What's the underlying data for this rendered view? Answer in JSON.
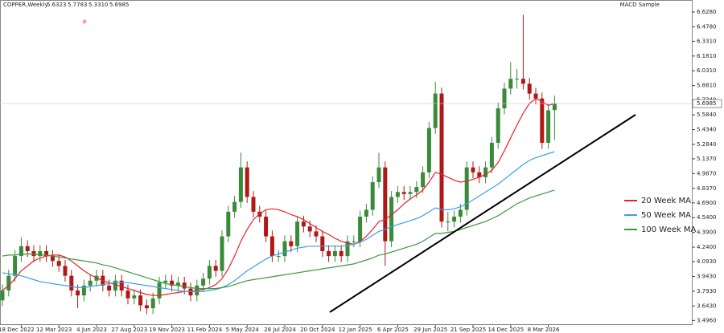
{
  "chart_data": {
    "type": "candlestick",
    "title": "COPPER,Weekly",
    "ohlc_label": [
      "5.6323",
      "5.7783",
      "5.3310",
      "5.6985"
    ],
    "indicator": "MACD Sample",
    "categories": [
      null,
      null,
      null,
      "18 Dec 2022",
      null,
      null,
      null,
      null,
      null,
      "12 Mar 2023",
      null,
      null,
      null,
      null,
      null,
      "4 Jun 2023",
      null,
      null,
      null,
      null,
      null,
      "27 Aug 2023",
      null,
      null,
      null,
      null,
      null,
      "19 Nov 2023",
      null,
      null,
      null,
      null,
      null,
      "11 Feb 2024",
      null,
      null,
      null,
      null,
      null,
      "5 May 2024",
      null,
      null,
      null,
      null,
      null,
      "28 Jul 2024",
      null,
      null,
      null,
      null,
      null,
      "20 Oct 2024",
      null,
      null,
      null,
      null,
      null,
      "12 Jan 2025",
      null,
      null,
      null,
      null,
      null,
      "6 Apr 2025",
      null,
      null,
      null,
      null,
      null,
      "29 Jun 2025",
      null,
      null,
      null,
      null,
      null,
      "21 Sep 2025",
      null,
      null,
      null,
      null,
      null,
      "14 Dec 2025",
      null,
      null,
      null,
      null,
      null,
      "8 Mar 2026",
      null
    ],
    "open": [
      3.7,
      3.8,
      3.95,
      4.15,
      4.25,
      4.2,
      4.15,
      4.2,
      4.15,
      4.1,
      4.05,
      3.95,
      3.8,
      3.75,
      3.85,
      3.9,
      3.95,
      3.85,
      3.8,
      3.9,
      3.8,
      3.72,
      3.75,
      3.65,
      3.62,
      3.72,
      3.88,
      3.9,
      3.85,
      3.88,
      3.82,
      3.75,
      3.85,
      3.92,
      4.05,
      4.0,
      4.35,
      4.6,
      4.7,
      5.05,
      4.75,
      4.6,
      4.55,
      4.35,
      4.15,
      4.15,
      4.3,
      4.25,
      4.5,
      4.45,
      4.4,
      4.35,
      4.2,
      4.15,
      4.2,
      4.15,
      4.3,
      4.3,
      4.55,
      4.62,
      4.9,
      5.05,
      4.3,
      4.75,
      4.8,
      4.78,
      4.8,
      4.85,
      5.0,
      5.45,
      5.8,
      4.5,
      4.5,
      4.55,
      4.62,
      5.05,
      5.0,
      4.95,
      5.05,
      5.3,
      5.65,
      5.85,
      5.95,
      5.95,
      5.9,
      5.8,
      5.75,
      5.3,
      5.6323
    ],
    "high": [
      3.86,
      4.01,
      4.21,
      4.34,
      4.31,
      4.26,
      4.26,
      4.26,
      4.21,
      4.16,
      4.11,
      4.01,
      3.86,
      3.91,
      3.96,
      4.01,
      4.01,
      3.91,
      3.96,
      3.96,
      3.86,
      3.81,
      3.81,
      3.71,
      3.78,
      3.94,
      3.96,
      3.96,
      3.94,
      3.94,
      3.88,
      3.91,
      3.98,
      4.11,
      4.11,
      4.41,
      4.66,
      4.76,
      5.2,
      5.11,
      4.81,
      4.66,
      4.61,
      4.41,
      4.21,
      4.36,
      4.36,
      4.56,
      4.56,
      4.51,
      4.46,
      4.41,
      4.26,
      4.26,
      4.26,
      4.36,
      4.36,
      4.61,
      4.68,
      4.96,
      5.2,
      5.11,
      4.81,
      4.86,
      4.86,
      4.86,
      4.91,
      5.06,
      5.51,
      5.92,
      5.86,
      4.6,
      4.61,
      4.68,
      5.11,
      5.11,
      5.06,
      5.11,
      5.36,
      5.71,
      5.91,
      6.12,
      6.05,
      6.6,
      5.96,
      5.86,
      5.81,
      5.69,
      5.7783
    ],
    "low": [
      3.64,
      3.74,
      3.89,
      4.09,
      4.14,
      4.09,
      4.09,
      4.09,
      4.04,
      3.99,
      3.89,
      3.74,
      3.62,
      3.69,
      3.79,
      3.84,
      3.79,
      3.74,
      3.74,
      3.74,
      3.66,
      3.66,
      3.59,
      3.56,
      3.56,
      3.66,
      3.82,
      3.79,
      3.79,
      3.76,
      3.69,
      3.69,
      3.79,
      3.86,
      3.94,
      3.94,
      4.29,
      4.54,
      4.64,
      4.69,
      4.54,
      4.49,
      4.29,
      4.09,
      4.09,
      4.09,
      4.19,
      4.19,
      4.39,
      4.34,
      4.29,
      4.14,
      4.09,
      4.09,
      4.09,
      4.09,
      4.24,
      4.24,
      4.49,
      4.56,
      4.84,
      4.05,
      4.24,
      4.69,
      4.72,
      4.72,
      4.74,
      4.79,
      4.94,
      5.39,
      4.44,
      4.4,
      4.44,
      4.49,
      4.56,
      4.94,
      4.89,
      4.89,
      4.99,
      5.24,
      5.59,
      5.79,
      5.85,
      5.84,
      5.74,
      5.69,
      5.24,
      5.24,
      5.331
    ],
    "close": [
      3.8,
      3.95,
      4.15,
      4.25,
      4.2,
      4.15,
      4.2,
      4.15,
      4.1,
      4.05,
      3.95,
      3.8,
      3.75,
      3.85,
      3.9,
      3.95,
      3.85,
      3.8,
      3.9,
      3.8,
      3.72,
      3.75,
      3.65,
      3.62,
      3.72,
      3.88,
      3.9,
      3.85,
      3.88,
      3.82,
      3.75,
      3.85,
      3.92,
      4.05,
      4.0,
      4.35,
      4.6,
      4.7,
      5.05,
      4.75,
      4.6,
      4.55,
      4.35,
      4.15,
      4.15,
      4.3,
      4.25,
      4.5,
      4.45,
      4.4,
      4.35,
      4.2,
      4.15,
      4.2,
      4.15,
      4.3,
      4.3,
      4.55,
      4.62,
      4.9,
      5.05,
      4.3,
      4.75,
      4.8,
      4.78,
      4.8,
      4.85,
      5.0,
      5.45,
      5.8,
      4.5,
      4.5,
      4.55,
      4.62,
      5.05,
      5.0,
      4.95,
      5.05,
      5.3,
      5.65,
      5.85,
      5.95,
      5.95,
      5.9,
      5.8,
      5.75,
      5.3,
      5.63,
      5.6985
    ],
    "up_color": "#3a8a3a",
    "down_color": "#b01818",
    "series": [
      {
        "name": "20 Week MA",
        "color": "#e8202a",
        "values": [
          3.8,
          3.85,
          3.92,
          4.0,
          4.05,
          4.1,
          4.13,
          4.15,
          4.16,
          4.16,
          4.14,
          4.1,
          4.05,
          4.0,
          3.96,
          3.93,
          3.9,
          3.88,
          3.86,
          3.84,
          3.82,
          3.8,
          3.78,
          3.76,
          3.75,
          3.75,
          3.76,
          3.77,
          3.78,
          3.79,
          3.79,
          3.8,
          3.81,
          3.83,
          3.86,
          3.92,
          4.02,
          4.15,
          4.3,
          4.42,
          4.52,
          4.58,
          4.62,
          4.63,
          4.62,
          4.6,
          4.57,
          4.55,
          4.52,
          4.48,
          4.44,
          4.4,
          4.37,
          4.33,
          4.3,
          4.28,
          4.27,
          4.3,
          4.35,
          4.42,
          4.5,
          4.52,
          4.57,
          4.62,
          4.68,
          4.73,
          4.77,
          4.82,
          4.9,
          5.0,
          4.98,
          4.95,
          4.92,
          4.9,
          4.91,
          4.93,
          4.95,
          4.98,
          5.02,
          5.1,
          5.22,
          5.35,
          5.48,
          5.6,
          5.7,
          5.75,
          5.72,
          5.68,
          5.7
        ]
      },
      {
        "name": "50 Week MA",
        "color": "#3aa0e8",
        "values": [
          3.98,
          3.97,
          3.96,
          3.95,
          3.93,
          3.91,
          3.89,
          3.88,
          3.87,
          3.86,
          3.85,
          3.84,
          3.83,
          3.83,
          3.84,
          3.85,
          3.86,
          3.87,
          3.88,
          3.88,
          3.88,
          3.87,
          3.86,
          3.85,
          3.84,
          3.83,
          3.82,
          3.81,
          3.8,
          3.79,
          3.79,
          3.79,
          3.79,
          3.8,
          3.81,
          3.83,
          3.86,
          3.9,
          3.95,
          4.0,
          4.04,
          4.08,
          4.12,
          4.15,
          4.17,
          4.19,
          4.21,
          4.23,
          4.24,
          4.25,
          4.25,
          4.25,
          4.25,
          4.25,
          4.25,
          4.26,
          4.27,
          4.29,
          4.32,
          4.36,
          4.4,
          4.42,
          4.45,
          4.47,
          4.49,
          4.51,
          4.53,
          4.56,
          4.6,
          4.64,
          4.62,
          4.62,
          4.63,
          4.65,
          4.68,
          4.72,
          4.76,
          4.8,
          4.84,
          4.88,
          4.93,
          4.98,
          5.03,
          5.08,
          5.12,
          5.15,
          5.17,
          5.19,
          5.21
        ]
      },
      {
        "name": "100 Week MA",
        "color": "#3a9a3a",
        "values": [
          4.15,
          4.16,
          4.16,
          4.17,
          4.17,
          4.17,
          4.16,
          4.16,
          4.15,
          4.14,
          4.13,
          4.12,
          4.11,
          4.1,
          4.09,
          4.08,
          4.06,
          4.05,
          4.03,
          4.01,
          3.99,
          3.97,
          3.95,
          3.93,
          3.91,
          3.89,
          3.87,
          3.86,
          3.85,
          3.84,
          3.83,
          3.82,
          3.82,
          3.82,
          3.82,
          3.83,
          3.84,
          3.86,
          3.88,
          3.9,
          3.91,
          3.92,
          3.93,
          3.94,
          3.95,
          3.96,
          3.97,
          3.98,
          3.99,
          4.0,
          4.01,
          4.02,
          4.03,
          4.04,
          4.05,
          4.06,
          4.07,
          4.09,
          4.11,
          4.13,
          4.16,
          4.17,
          4.19,
          4.21,
          4.23,
          4.25,
          4.27,
          4.3,
          4.34,
          4.38,
          4.38,
          4.39,
          4.4,
          4.42,
          4.44,
          4.46,
          4.48,
          4.5,
          4.53,
          4.56,
          4.6,
          4.64,
          4.68,
          4.71,
          4.74,
          4.76,
          4.78,
          4.8,
          4.82
        ]
      }
    ],
    "legend": "right",
    "ylim": [
      3.45,
      6.75
    ],
    "yticks": [
      {
        "value": 6.628,
        "label": "6.6280"
      },
      {
        "value": 6.478,
        "label": "6.4780"
      },
      {
        "value": 6.331,
        "label": "6.3310"
      },
      {
        "value": 6.181,
        "label": "6.1810"
      },
      {
        "value": 6.031,
        "label": "6.0310"
      },
      {
        "value": 5.881,
        "label": "5.8810"
      },
      {
        "value": 5.734,
        "label": "5.7340"
      },
      {
        "value": 5.584,
        "label": "5.5840"
      },
      {
        "value": 5.434,
        "label": "5.4340"
      },
      {
        "value": 5.284,
        "label": "5.2840"
      },
      {
        "value": 5.137,
        "label": "5.1370"
      },
      {
        "value": 4.987,
        "label": "4.9870"
      },
      {
        "value": 4.837,
        "label": "4.8370"
      },
      {
        "value": 4.69,
        "label": "4.6900"
      },
      {
        "value": 4.54,
        "label": "4.5400"
      },
      {
        "value": 4.39,
        "label": "4.3900"
      },
      {
        "value": 4.24,
        "label": "4.2400"
      },
      {
        "value": 4.093,
        "label": "4.0930"
      },
      {
        "value": 3.943,
        "label": "3.9430"
      },
      {
        "value": 3.793,
        "label": "3.7930"
      },
      {
        "value": 3.643,
        "label": "3.6430"
      },
      {
        "value": 3.496,
        "label": "3.4960"
      }
    ]
  }
}
